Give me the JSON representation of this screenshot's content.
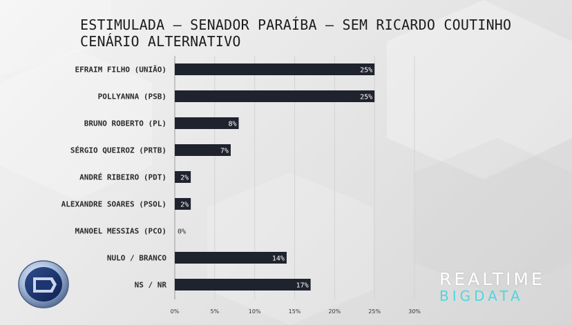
{
  "title_lines": [
    "ESTIMULADA – SENADOR PARAÍBA – SEM RICARDO COUTINHO",
    "CENÁRIO ALTERNATIVO"
  ],
  "chart_data": {
    "type": "bar",
    "orientation": "horizontal",
    "title": "ESTIMULADA – SENADOR PARAÍBA – SEM RICARDO COUTINHO CENÁRIO ALTERNATIVO",
    "categories": [
      "EFRAIM FILHO (UNIÃO)",
      "POLLYANNA (PSB)",
      "BRUNO ROBERTO (PL)",
      "SÉRGIO QUEIROZ (PRTB)",
      "ANDRÉ RIBEIRO (PDT)",
      "ALEXANDRE SOARES (PSOL)",
      "MANOEL MESSIAS (PCO)",
      "NULO / BRANCO",
      "NS / NR"
    ],
    "values": [
      25,
      25,
      8,
      7,
      2,
      2,
      0,
      14,
      17
    ],
    "value_labels": [
      "25%",
      "25%",
      "8%",
      "7%",
      "2%",
      "2%",
      "0%",
      "14%",
      "17%"
    ],
    "xlim": [
      0,
      30
    ],
    "xticks": [
      0,
      5,
      10,
      15,
      20,
      25,
      30
    ],
    "xtick_labels": [
      "0%",
      "5%",
      "10%",
      "15%",
      "20%",
      "25%",
      "30%"
    ],
    "xlabel": "",
    "ylabel": "",
    "grid": true,
    "bar_color": "#1f232d"
  },
  "brand": {
    "line1": "REALTIME",
    "line2": "BIGDATA",
    "line1_color": "#ffffff",
    "line2_color": "#4fd6df"
  },
  "logo": {
    "icon": "record-tv-logo-icon"
  }
}
